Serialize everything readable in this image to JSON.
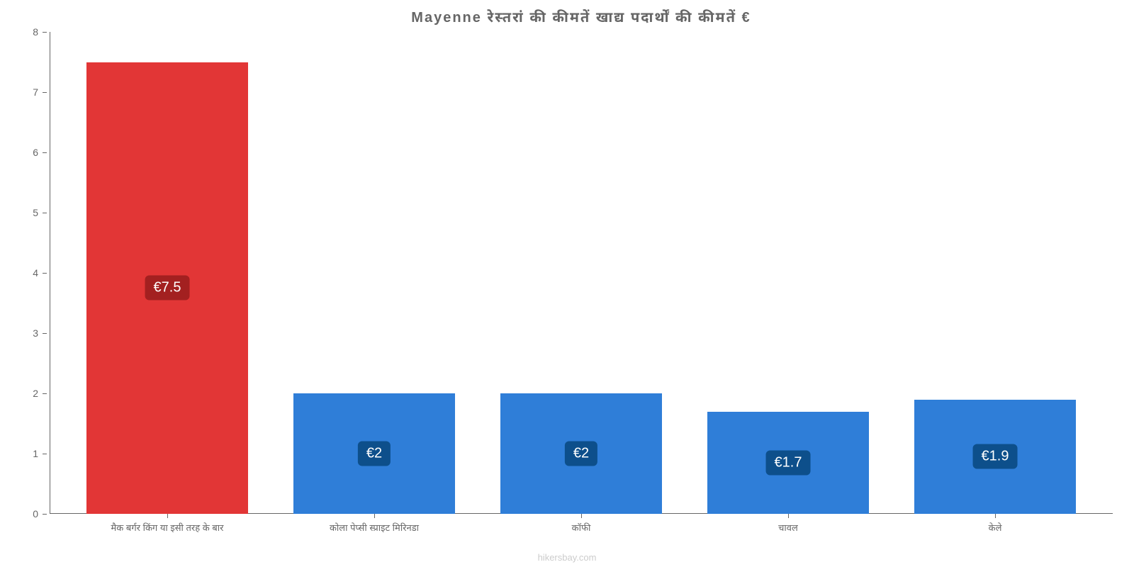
{
  "chart": {
    "type": "bar",
    "title": "Mayenne रेस्तरां   की   कीमतें   खाद्य   पदार्थों   की   कीमतें   €",
    "title_fontsize": 20,
    "title_color": "#666666",
    "background_color": "#ffffff",
    "axis_color": "#666666",
    "tick_label_color": "#666666",
    "tick_label_fontsize": 14,
    "x_label_fontsize": 13,
    "watermark": "hikersbay.com",
    "watermark_color": "#cccccc",
    "ylim": [
      0,
      8
    ],
    "ytick_step": 1,
    "yticks": [
      0,
      1,
      2,
      3,
      4,
      5,
      6,
      7,
      8
    ],
    "bar_width_pct": 78,
    "value_badge_fontsize": 20,
    "categories": [
      "मैक बर्गर किंग या इसी तरह के बार",
      "कोला पेप्सी स्प्राइट मिरिनडा",
      "कॉफी",
      "चावल",
      "केले"
    ],
    "values": [
      7.5,
      2,
      2,
      1.7,
      1.9
    ],
    "value_labels": [
      "€7.5",
      "€2",
      "€2",
      "€1.7",
      "€1.9"
    ],
    "bar_colors": [
      "#e23636",
      "#2f7ed8",
      "#2f7ed8",
      "#2f7ed8",
      "#2f7ed8"
    ],
    "value_badge_bg": [
      "#a32020",
      "#0d4f8b",
      "#0d4f8b",
      "#0d4f8b",
      "#0d4f8b"
    ],
    "value_badge_text_color": "#ffffff"
  }
}
